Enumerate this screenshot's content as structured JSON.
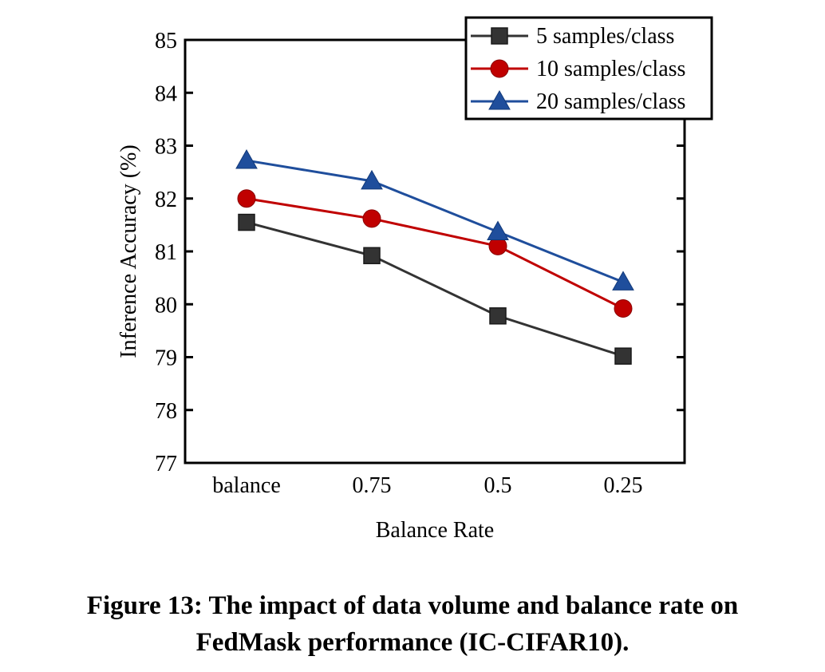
{
  "chart_data": {
    "type": "line",
    "xlabel": "Balance Rate",
    "ylabel": "Inference Accuracy (%)",
    "categories": [
      "balance",
      "0.75",
      "0.5",
      "0.25"
    ],
    "ylim": [
      77,
      85
    ],
    "yticks": [
      "77",
      "78",
      "79",
      "80",
      "81",
      "82",
      "83",
      "84",
      "85"
    ],
    "grid": false,
    "legend_position": "top-right",
    "series": [
      {
        "name": "5 samples/class",
        "color": "#333333",
        "marker": "square",
        "values": [
          81.55,
          80.92,
          79.78,
          79.02
        ]
      },
      {
        "name": "10 samples/class",
        "color": "#c00000",
        "marker": "circle",
        "values": [
          82.0,
          81.62,
          81.1,
          79.92
        ]
      },
      {
        "name": "20 samples/class",
        "color": "#1f4e9c",
        "marker": "triangle",
        "values": [
          82.72,
          82.33,
          81.37,
          80.42
        ]
      }
    ]
  },
  "caption": {
    "line1": "Figure 13: The impact of data volume and balance rate on",
    "line2": "FedMask performance (IC-CIFAR10)."
  }
}
